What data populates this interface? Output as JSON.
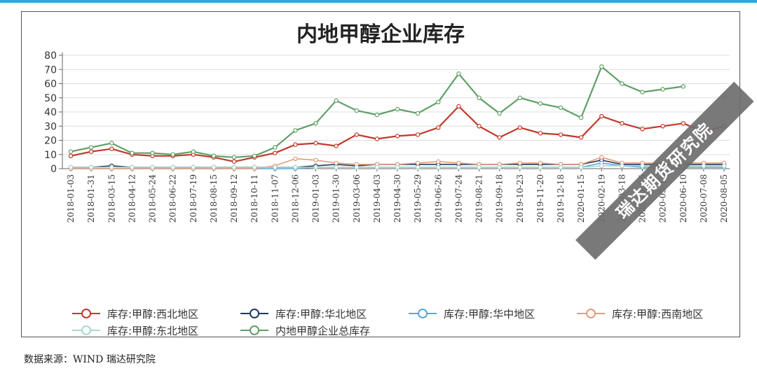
{
  "source_note": "数据来源：WIND 瑞达研究院",
  "watermark": "瑞达期货研究院",
  "chart_data": {
    "type": "line",
    "title": "内地甲醇企业库存",
    "xlabel": "",
    "ylabel": "",
    "ylim": [
      0,
      80
    ],
    "yticks": [
      "0",
      "10",
      "20",
      "30",
      "40",
      "50",
      "60",
      "70",
      "80"
    ],
    "grid": true,
    "legend_position": "bottom",
    "x": [
      "2018-01-03",
      "2018-01-31",
      "2018-03-15",
      "2018-04-12",
      "2018-05-24",
      "2018-06-22",
      "2018-07-19",
      "2018-08-15",
      "2018-09-12",
      "2018-10-11",
      "2018-11-07",
      "2018-12-06",
      "2019-01-03",
      "2019-01-30",
      "2019-03-06",
      "2019-04-03",
      "2019-04-30",
      "2019-05-29",
      "2019-06-26",
      "2019-07-24",
      "2019-08-21",
      "2019-09-18",
      "2019-10-23",
      "2019-11-20",
      "2019-12-18",
      "2020-01-15",
      "2020-02-19",
      "2020-03-18",
      "2020-04-15",
      "2020-05-13",
      "2020-06-10",
      "2020-07-08",
      "2020-08-05"
    ],
    "series": [
      {
        "name": "库存:甲醇:西北地区",
        "color": "#c0392b",
        "marker": "#c0392b",
        "values": [
          9,
          12,
          14,
          10,
          9,
          9,
          10,
          8,
          5,
          8,
          11,
          17,
          18,
          16,
          24,
          21,
          23,
          24,
          29,
          44,
          30,
          22,
          29,
          25,
          24,
          22,
          37,
          32,
          28,
          30,
          32,
          26,
          30
        ]
      },
      {
        "name": "库存:甲醇:华北地区",
        "color": "#1f3a5f",
        "marker": "#1f3a5f",
        "values": [
          1,
          1,
          2,
          1,
          1,
          1,
          1,
          1,
          1,
          1,
          1,
          1,
          2,
          3,
          2,
          3,
          3,
          3,
          3,
          3,
          3,
          3,
          3,
          3,
          3,
          3,
          6,
          3,
          3,
          3,
          3,
          3,
          3
        ]
      },
      {
        "name": "库存:甲醇:华中地区",
        "color": "#5aa6d6",
        "marker": "#5aa6d6",
        "values": [
          0,
          0,
          0,
          0,
          0,
          0,
          0,
          0,
          0,
          0,
          0,
          0,
          1,
          1,
          1,
          1,
          1,
          1,
          1,
          1,
          1,
          1,
          1,
          1,
          1,
          1,
          4,
          2,
          1,
          1,
          1,
          1,
          1
        ]
      },
      {
        "name": "库存:甲醇:西南地区",
        "color": "#e59a7a",
        "marker": "#e59a7a",
        "values": [
          0,
          0,
          0,
          0,
          0,
          0,
          0,
          0,
          0,
          0,
          2,
          7,
          6,
          4,
          3,
          3,
          3,
          4,
          5,
          4,
          3,
          3,
          4,
          4,
          3,
          3,
          8,
          4,
          4,
          4,
          4,
          4,
          4
        ]
      },
      {
        "name": "库存:甲醇:东北地区",
        "color": "#a9d8cc",
        "marker": "#a9d8cc",
        "values": [
          1,
          1,
          1,
          1,
          1,
          1,
          1,
          1,
          1,
          1,
          1,
          1,
          1,
          1,
          1,
          1,
          1,
          1,
          1,
          1,
          1,
          1,
          1,
          1,
          1,
          1,
          2,
          2,
          2,
          2,
          2,
          2,
          2
        ]
      },
      {
        "name": "内地甲醇企业总库存",
        "color": "#5f9f66",
        "marker": "#5f9f66",
        "values": [
          12,
          15,
          18,
          11,
          11,
          10,
          12,
          9,
          8,
          9,
          15,
          27,
          32,
          48,
          41,
          38,
          42,
          39,
          47,
          67,
          50,
          39,
          50,
          46,
          43,
          36,
          72,
          60,
          54,
          56,
          58,
          null,
          51
        ]
      }
    ]
  }
}
